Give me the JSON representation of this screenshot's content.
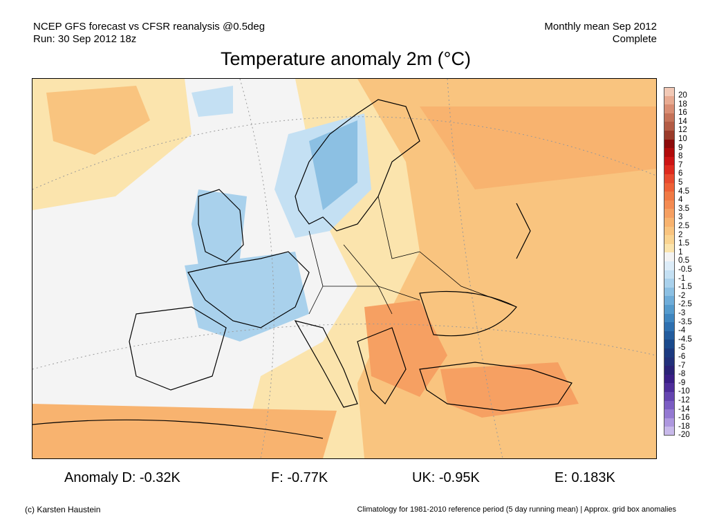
{
  "header": {
    "line1_left": "NCEP GFS forecast vs CFSR reanalysis @0.5deg",
    "line2_left": "Run: 30 Sep 2012 18z",
    "line1_right": "Monthly mean Sep 2012",
    "line2_right": "Complete"
  },
  "title": "Temperature anomaly 2m (°C)",
  "colorbar": {
    "labels": [
      "20",
      "18",
      "16",
      "14",
      "12",
      "10",
      "9",
      "8",
      "7",
      "6",
      "5",
      "4.5",
      "4",
      "3.5",
      "3",
      "2.5",
      "2",
      "1.5",
      "1",
      "0.5",
      "-0.5",
      "-1",
      "-1.5",
      "-2",
      "-2.5",
      "-3",
      "-3.5",
      "-4",
      "-4.5",
      "-5",
      "-6",
      "-7",
      "-8",
      "-9",
      "-10",
      "-12",
      "-14",
      "-16",
      "-18",
      "-20"
    ],
    "colors": [
      "#f2c9b6",
      "#e8ab92",
      "#d98e74",
      "#c57359",
      "#b35c45",
      "#9a3b2a",
      "#8c0a0a",
      "#b00b0b",
      "#cc1414",
      "#de2a1e",
      "#e84a2e",
      "#ee6137",
      "#f07a45",
      "#f48b52",
      "#f6a062",
      "#f8b36f",
      "#f9c47f",
      "#fad491",
      "#fbe4ad",
      "#f3f3f3",
      "#dcecf8",
      "#c4e0f3",
      "#a9d1ec",
      "#8cc0e3",
      "#6fadd9",
      "#559bcd",
      "#3f86c0",
      "#2e70b0",
      "#225c9e",
      "#1a4a8c",
      "#1c3a80",
      "#22307a",
      "#2a2276",
      "#3a1e86",
      "#4e2d9a",
      "#6545b0",
      "#7b5dc3",
      "#9479d2",
      "#ae98df",
      "#c8b9ea"
    ]
  },
  "stats": {
    "d": "Anomaly D: -0.32K",
    "f": "F: -0.77K",
    "uk": "UK: -0.95K",
    "e": "E: 0.183K"
  },
  "footer": {
    "credit": "(c) Karsten Haustein",
    "note": "Climatology for 1981-2010 reference period (5 day running mean) | Approx. grid box anomalies"
  }
}
